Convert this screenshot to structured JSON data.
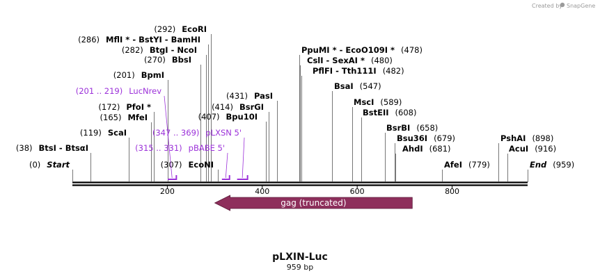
{
  "credit": {
    "text": "Created by",
    "brand": "SnapGene"
  },
  "title": "pLXIN-Luc",
  "subtitle": "959 bp",
  "colors": {
    "primer": "#9b30d9",
    "feature": "#8e2f5c",
    "line": "#555555"
  },
  "ruler": {
    "ticks": [
      {
        "pos": 200,
        "label": "200"
      },
      {
        "pos": 400,
        "label": "400"
      },
      {
        "pos": 600,
        "label": "600"
      },
      {
        "pos": 800,
        "label": "800"
      }
    ]
  },
  "sites": [
    {
      "pre": "(0)",
      "name": "Start",
      "post": "",
      "pos": 0,
      "italic": true
    },
    {
      "pre": "(38)",
      "name": "BtsI - BtsαI",
      "post": "",
      "pos": 38
    },
    {
      "pre": "(119)",
      "name": "ScaI",
      "post": "",
      "pos": 119
    },
    {
      "pre": "(165)",
      "name": "MfeI",
      "post": "",
      "pos": 165
    },
    {
      "pre": "(172)",
      "name": "PfoI *",
      "post": "",
      "pos": 172
    },
    {
      "pre": "(201)",
      "name": "BpmI",
      "post": "",
      "pos": 201
    },
    {
      "pre": "(270)",
      "name": "BbsI",
      "post": "",
      "pos": 270
    },
    {
      "pre": "(282)",
      "name": "BtgI - NcoI",
      "post": "",
      "pos": 282
    },
    {
      "pre": "(286)",
      "name": "MflI * - BstYI - BamHI",
      "post": "",
      "pos": 286
    },
    {
      "pre": "(292)",
      "name": "EcoRI",
      "post": "",
      "pos": 292
    },
    {
      "pre": "(307)",
      "name": "EcoNI",
      "post": "",
      "pos": 307
    },
    {
      "pre": "(407)",
      "name": "Bpu10I",
      "post": "",
      "pos": 407
    },
    {
      "pre": "(414)",
      "name": "BsrGI",
      "post": "",
      "pos": 414
    },
    {
      "pre": "(431)",
      "name": "PasI",
      "post": "",
      "pos": 431
    },
    {
      "pre": "",
      "name": "PpuMI * - EcoO109I *",
      "post": "(478)",
      "pos": 478
    },
    {
      "pre": "",
      "name": "CslI - SexAI *",
      "post": "(480)",
      "pos": 480
    },
    {
      "pre": "",
      "name": "PflFI - Tth111I",
      "post": "(482)",
      "pos": 482
    },
    {
      "pre": "",
      "name": "BsaI",
      "post": "(547)",
      "pos": 547
    },
    {
      "pre": "",
      "name": "MscI",
      "post": "(589)",
      "pos": 589
    },
    {
      "pre": "",
      "name": "BstEII",
      "post": "(608)",
      "pos": 608
    },
    {
      "pre": "",
      "name": "BsrBI",
      "post": "(658)",
      "pos": 658
    },
    {
      "pre": "",
      "name": "Bsu36I",
      "post": "(679)",
      "pos": 679
    },
    {
      "pre": "",
      "name": "AhdI",
      "post": "(681)",
      "pos": 681
    },
    {
      "pre": "",
      "name": "AfeI",
      "post": "(779)",
      "pos": 779
    },
    {
      "pre": "",
      "name": "PshAI",
      "post": "(898)",
      "pos": 898
    },
    {
      "pre": "",
      "name": "AcuI",
      "post": "(916)",
      "pos": 916
    },
    {
      "pre": "",
      "name": "End",
      "post": "(959)",
      "pos": 959,
      "italic": true
    }
  ],
  "primers": [
    {
      "range": "(201 .. 219)",
      "name": "LucNrev",
      "start": 201,
      "end": 219
    },
    {
      "range": "(347 .. 369)",
      "name": "pLXSN 5'",
      "start": 347,
      "end": 369
    },
    {
      "range": "(315 .. 331)",
      "name": "pBABE 5'",
      "start": 315,
      "end": 331
    }
  ],
  "features": [
    {
      "name": "gag (truncated)",
      "start": 300,
      "end": 716,
      "direction": "reverse"
    }
  ]
}
